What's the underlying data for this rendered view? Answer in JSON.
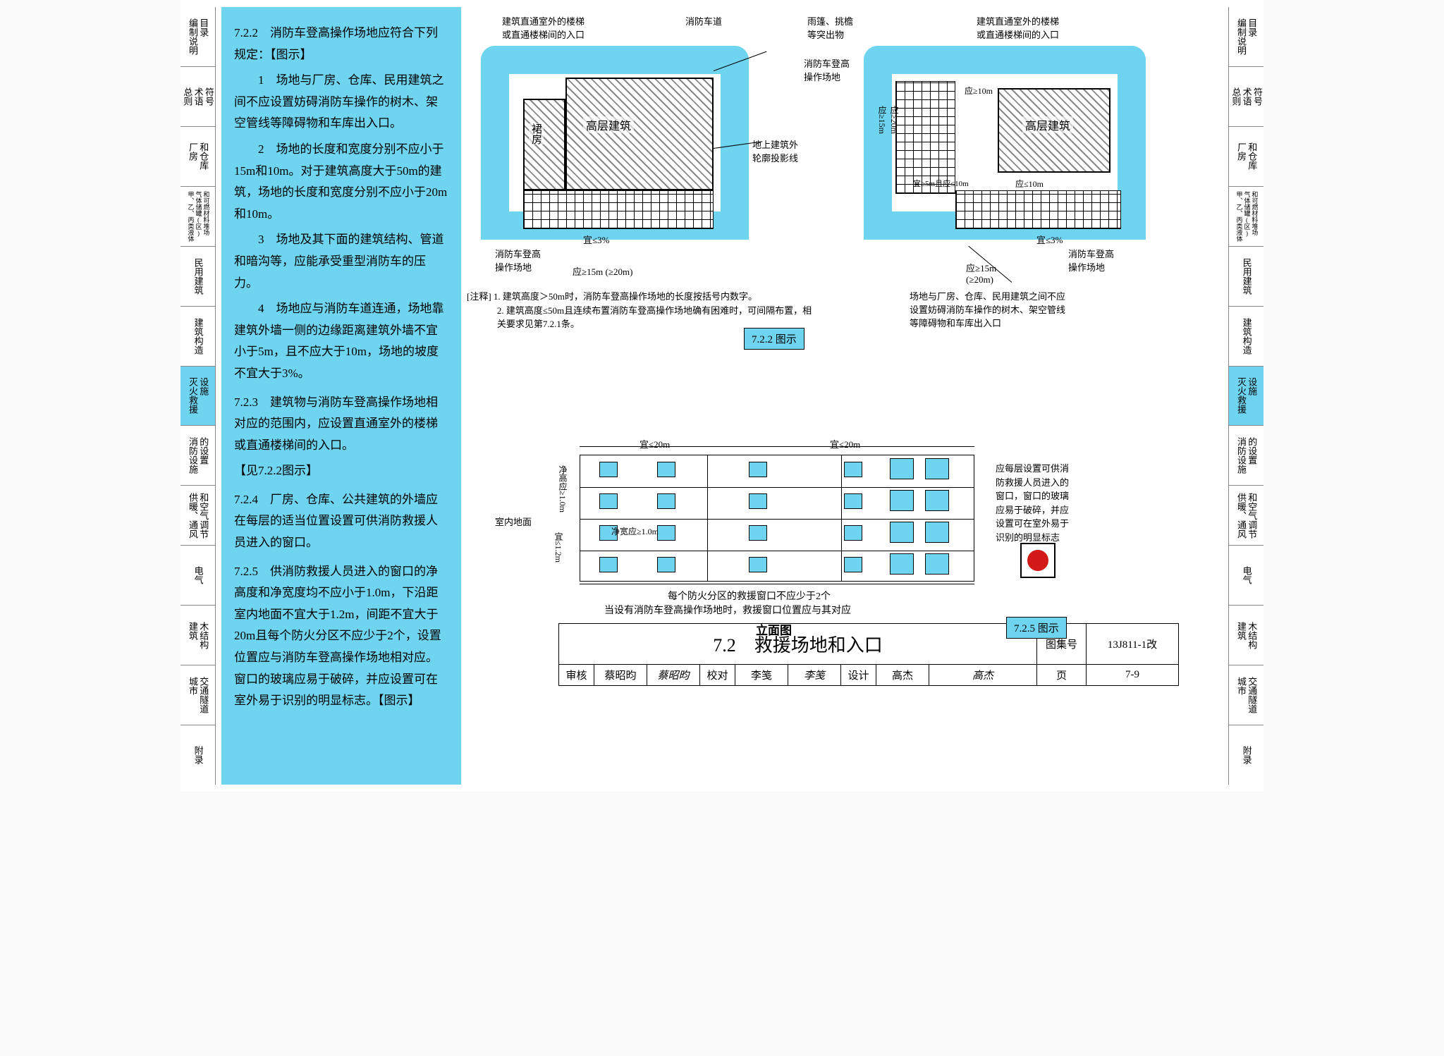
{
  "colors": {
    "accent": "#6fd4f0",
    "text": "#000000",
    "hatch": "#888888",
    "red": "#d31818",
    "bg": "#ffffff"
  },
  "side_tabs": [
    {
      "cols": [
        "编制说明",
        "目录"
      ],
      "hl": false
    },
    {
      "cols": [
        "总则",
        "术语",
        "符号"
      ],
      "hl": false
    },
    {
      "cols": [
        "厂房",
        "和仓库"
      ],
      "hl": false
    },
    {
      "cols": [
        "甲、乙、丙类液体",
        "气体储罐(区)",
        "和可燃材料堆场"
      ],
      "hl": false,
      "small": true
    },
    {
      "cols": [
        "民用建筑"
      ],
      "hl": false
    },
    {
      "cols": [
        "建筑构造"
      ],
      "hl": false
    },
    {
      "cols": [
        "灭火救援",
        "设施"
      ],
      "hl": true
    },
    {
      "cols": [
        "消防设施",
        "的设置"
      ],
      "hl": false
    },
    {
      "cols": [
        "供暖、通风",
        "和空气调节"
      ],
      "hl": false
    },
    {
      "cols": [
        "电气"
      ],
      "hl": false
    },
    {
      "cols": [
        "建筑",
        "木结构"
      ],
      "hl": false
    },
    {
      "cols": [
        "城市",
        "交通隧道"
      ],
      "hl": false
    },
    {
      "cols": [
        "附录"
      ],
      "hl": false
    }
  ],
  "regulations": {
    "r722_head": "7.2.2　消防车登高操作场地应符合下列规定：【图示】",
    "r722_1": "1　场地与厂房、仓库、民用建筑之间不应设置妨碍消防车操作的树木、架空管线等障碍物和车库出入口。",
    "r722_2": "2　场地的长度和宽度分别不应小于15m和10m。对于建筑高度大于50m的建筑，场地的长度和宽度分别不应小于20m和10m。",
    "r722_3": "3　场地及其下面的建筑结构、管道和暗沟等，应能承受重型消防车的压力。",
    "r722_4": "4　场地应与消防车道连通，场地靠建筑外墙一侧的边缘距离建筑外墙不宜小于5m，且不应大于10m，场地的坡度不宜大于3%。",
    "r723": "7.2.3　建筑物与消防车登高操作场地相对应的范围内，应设置直通室外的楼梯或直通楼梯间的入口。",
    "r723_ref": "【见7.2.2图示】",
    "r724": "7.2.4　厂房、仓库、公共建筑的外墙应在每层的适当位置设置可供消防救援人员进入的窗口。",
    "r725": "7.2.5　供消防救援人员进入的窗口的净高度和净宽度均不应小于1.0m，下沿距室内地面不宜大于1.2m，间距不宜大于20m且每个防火分区不应少于2个，设置位置应与消防车登高操作场地相对应。窗口的玻璃应易于破碎，并应设置可在室外易于识别的明显标志。【图示】"
  },
  "plan_labels": {
    "l1": "建筑直通室外的楼梯\n或直通楼梯间的入口",
    "l2": "消防车道",
    "l3": "雨篷、挑檐\n等突出物",
    "l4": "消防车登高\n操作场地",
    "l5": "高层建筑",
    "l6": "裙房",
    "l7": "地上建筑外\n轮廓投影线",
    "l8": "场地与厂房、仓库、民用建筑之间不应\n设置妨碍消防车操作的树木、架空管线\n等障碍物和车库出入口",
    "d_ge5_le10": "宜≥5m且应≤10m",
    "d_5": "应≥5m",
    "d_10": "应≤10m",
    "d_15": "应≥15m",
    "d_20": "(≥20m)",
    "d_ge10": "应≥10m",
    "d_ge15": "应≥15m",
    "d_ge20": "应≥20m",
    "d_slope": "宜≤3%",
    "fig_tag": "7.2.2 图示"
  },
  "plan_notes": {
    "n1": "[注释] 1. 建筑高度＞50m时，消防车登高操作场地的长度按括号内数字。",
    "n2": "2. 建筑高度≤50m且连续布置消防车登高操作场地确有困难时，可间隔布置，相关要求见第7.2.1条。"
  },
  "elevation": {
    "dim_span": "宜≤20m",
    "dim_h": "净高应≥1.0m",
    "dim_w": "净宽应≥1.0m",
    "dim_sill": "宜≤1.2m",
    "ground": "室内地面",
    "note_r1": "应每层设置可供消\n防救援人员进入的\n窗口，窗口的玻璃\n应易于破碎，并应\n设置可在室外易于\n识别的明显标志",
    "bottom1": "每个防火分区的救援窗口不应少于2个",
    "bottom2": "当设有消防车登高操作场地时，救援窗口位置应与其对应",
    "caption": "立面图",
    "fig_tag": "7.2.5 图示"
  },
  "title_block": {
    "title": "7.2　救援场地和入口",
    "atlas_label": "图集号",
    "atlas": "13J811-1改",
    "review_l": "审核",
    "review_v": "蔡昭昀",
    "check_l": "校对",
    "check_v": "李笺",
    "design_l": "设计",
    "design_v": "高杰",
    "page_l": "页",
    "page_v": "7-9"
  }
}
